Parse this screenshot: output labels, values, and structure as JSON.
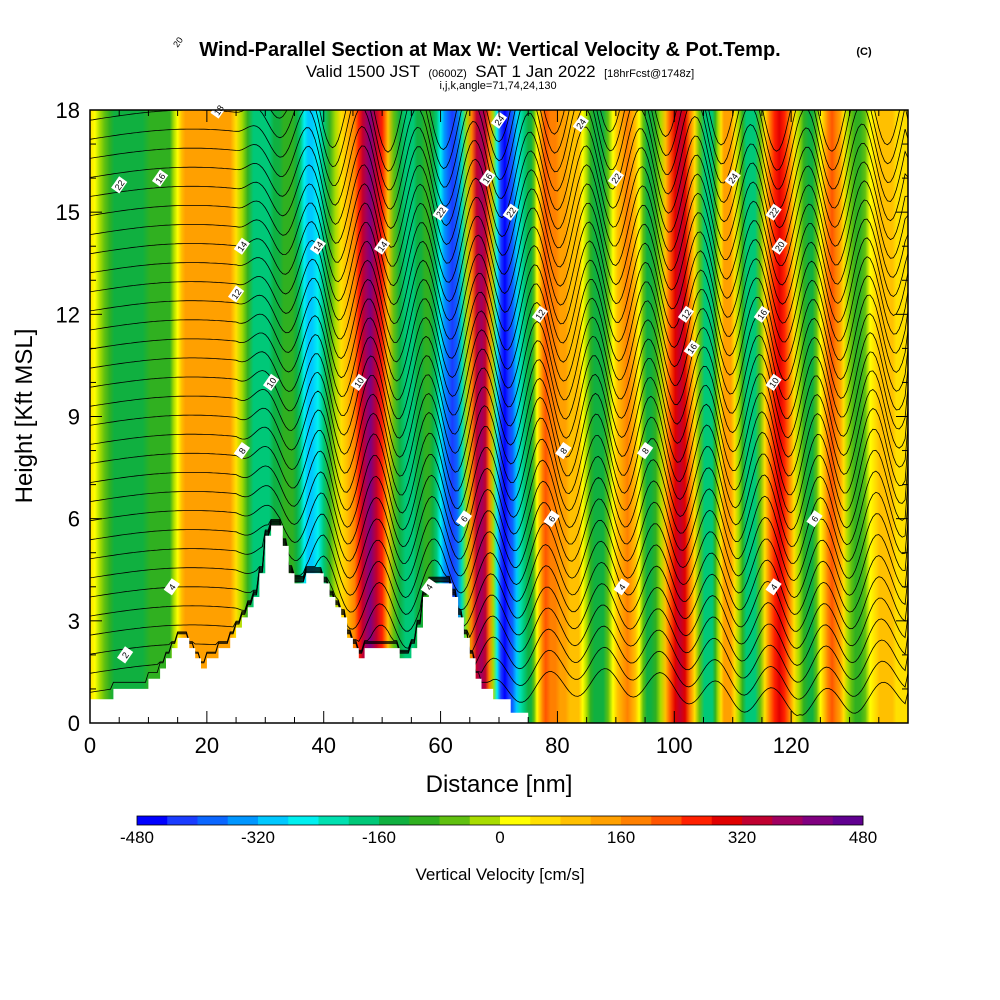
{
  "chart_data": {
    "type": "heatmap",
    "title": "Wind-Parallel Section at Max W: Vertical Velocity & Pot.Temp.",
    "title_mark": "(C)",
    "subtitle_parts": [
      "Valid 1500 JST",
      "(0600Z)",
      "SAT 1 Jan 2022",
      "[18hrFcst@1748z]"
    ],
    "subtitle2": "i,j,k,angle=71,74,24,130",
    "xlabel": "Distance [nm]",
    "ylabel": "Height [Kft MSL]",
    "xlim": [
      0,
      140
    ],
    "ylim": [
      0,
      18
    ],
    "x_ticks": [
      0,
      20,
      40,
      60,
      80,
      100,
      120
    ],
    "y_ticks": [
      0,
      3,
      6,
      9,
      12,
      15,
      18
    ],
    "colorbar": {
      "title": "Vertical Velocity [cm/s]",
      "range": [
        -480,
        480
      ],
      "step": 40,
      "tick_labels": [
        -480,
        -320,
        -160,
        0,
        160,
        320,
        480
      ],
      "colors": [
        "#0000ff",
        "#1a3cff",
        "#0a66ff",
        "#0096ff",
        "#00c8ff",
        "#00f0f0",
        "#00e0b0",
        "#00c878",
        "#10b040",
        "#30b020",
        "#60c010",
        "#a8dc00",
        "#ffff00",
        "#ffe000",
        "#ffc000",
        "#ffa000",
        "#ff8000",
        "#ff5500",
        "#ff2000",
        "#e00000",
        "#c00030",
        "#a00060",
        "#800080",
        "#600090"
      ]
    },
    "w_updraft_bands_nm": [
      [
        5,
        -150
      ],
      [
        13,
        -100
      ],
      [
        17,
        150
      ],
      [
        23,
        150
      ],
      [
        29,
        -200
      ],
      [
        34,
        -100
      ],
      [
        38,
        -300
      ],
      [
        44,
        100
      ],
      [
        48,
        400
      ],
      [
        54,
        -200
      ],
      [
        58,
        -100
      ],
      [
        62,
        -420
      ],
      [
        67,
        380
      ],
      [
        71,
        -460
      ],
      [
        75,
        -150
      ],
      [
        78,
        200
      ],
      [
        83,
        100
      ],
      [
        87,
        -150
      ],
      [
        92,
        160
      ],
      [
        96,
        -150
      ],
      [
        101,
        320
      ],
      [
        106,
        -200
      ],
      [
        109,
        150
      ],
      [
        113,
        -200
      ],
      [
        118,
        300
      ],
      [
        123,
        -150
      ],
      [
        127,
        200
      ],
      [
        131,
        -100
      ],
      [
        136,
        100
      ]
    ],
    "theta_contour_labels": [
      2,
      4,
      6,
      8,
      10,
      12,
      14,
      16,
      18,
      20,
      22,
      24
    ],
    "terrain_profile": [
      [
        0,
        0.7
      ],
      [
        4,
        0.7
      ],
      [
        4,
        1.0
      ],
      [
        10,
        1.0
      ],
      [
        10,
        1.3
      ],
      [
        12,
        1.3
      ],
      [
        12,
        1.6
      ],
      [
        13,
        1.6
      ],
      [
        13,
        1.9
      ],
      [
        14,
        1.9
      ],
      [
        14,
        2.2
      ],
      [
        15,
        2.2
      ],
      [
        15,
        2.5
      ],
      [
        17,
        2.5
      ],
      [
        17,
        2.2
      ],
      [
        18,
        2.2
      ],
      [
        18,
        1.9
      ],
      [
        19,
        1.9
      ],
      [
        19,
        1.6
      ],
      [
        20,
        1.6
      ],
      [
        20,
        1.9
      ],
      [
        22,
        1.9
      ],
      [
        22,
        2.2
      ],
      [
        24,
        2.2
      ],
      [
        24,
        2.5
      ],
      [
        25,
        2.5
      ],
      [
        25,
        2.8
      ],
      [
        26,
        2.8
      ],
      [
        26,
        3.1
      ],
      [
        27,
        3.1
      ],
      [
        27,
        3.4
      ],
      [
        28,
        3.4
      ],
      [
        28,
        3.7
      ],
      [
        29,
        3.7
      ],
      [
        29,
        4.4
      ],
      [
        30,
        4.4
      ],
      [
        30,
        5.5
      ],
      [
        31,
        5.5
      ],
      [
        31,
        5.8
      ],
      [
        33,
        5.8
      ],
      [
        33,
        5.2
      ],
      [
        34,
        5.2
      ],
      [
        34,
        4.4
      ],
      [
        35,
        4.4
      ],
      [
        35,
        4.1
      ],
      [
        37,
        4.1
      ],
      [
        37,
        4.4
      ],
      [
        40,
        4.4
      ],
      [
        40,
        4.1
      ],
      [
        41,
        4.1
      ],
      [
        41,
        3.7
      ],
      [
        42,
        3.7
      ],
      [
        42,
        3.4
      ],
      [
        43,
        3.4
      ],
      [
        43,
        3.1
      ],
      [
        44,
        3.1
      ],
      [
        44,
        2.5
      ],
      [
        45,
        2.5
      ],
      [
        45,
        2.2
      ],
      [
        46,
        2.2
      ],
      [
        46,
        1.9
      ],
      [
        47,
        1.9
      ],
      [
        47,
        2.2
      ],
      [
        53,
        2.2
      ],
      [
        53,
        1.9
      ],
      [
        55,
        1.9
      ],
      [
        55,
        2.2
      ],
      [
        56,
        2.2
      ],
      [
        56,
        2.8
      ],
      [
        57,
        2.8
      ],
      [
        57,
        3.7
      ],
      [
        58,
        3.7
      ],
      [
        58,
        4.1
      ],
      [
        62,
        4.1
      ],
      [
        62,
        3.7
      ],
      [
        63,
        3.7
      ],
      [
        63,
        3.1
      ],
      [
        64,
        3.1
      ],
      [
        64,
        2.5
      ],
      [
        65,
        2.5
      ],
      [
        65,
        1.9
      ],
      [
        66,
        1.9
      ],
      [
        66,
        1.3
      ],
      [
        67,
        1.3
      ],
      [
        67,
        1.0
      ],
      [
        69,
        1.0
      ],
      [
        69,
        0.7
      ],
      [
        72,
        0.7
      ],
      [
        72,
        0.3
      ],
      [
        75,
        0.3
      ],
      [
        75,
        0
      ],
      [
        140,
        0
      ]
    ]
  }
}
